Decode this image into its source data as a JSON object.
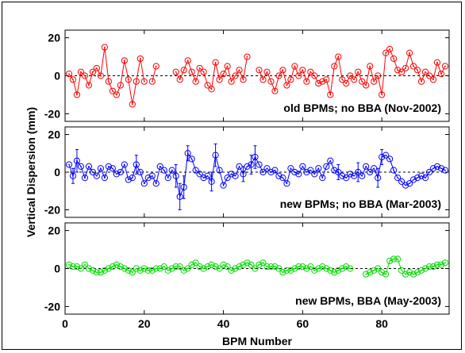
{
  "chart_data": {
    "type": "line",
    "xlabel": "BPM Number",
    "ylabel": "Vertical Dispersion (mm)",
    "xlim": [
      0,
      97
    ],
    "xticks": [
      0,
      20,
      40,
      60,
      80
    ],
    "panels": [
      {
        "annotation": "old BPMs; no BBA (Nov-2002)",
        "color": "#ff0000",
        "marker": "circle-dot",
        "error_bars": false,
        "ylim": [
          -24,
          24
        ],
        "yticks": [
          -20,
          0,
          20
        ],
        "segments": [
          {
            "x": [
              1,
              2,
              3,
              4,
              5,
              6,
              7,
              8,
              9,
              10,
              11,
              12,
              13,
              14,
              15,
              16,
              17,
              18,
              19,
              20
            ],
            "y": [
              1,
              -2,
              -10,
              2,
              0,
              -5,
              2,
              4,
              0,
              15,
              -3,
              -8,
              -10,
              -5,
              8,
              -2,
              -15,
              -3,
              9,
              -3
            ]
          },
          {
            "x": [
              22,
              23
            ],
            "y": [
              -3,
              5
            ]
          },
          {
            "x": [
              28,
              29,
              30,
              31,
              32,
              33,
              34,
              35,
              36,
              37,
              38,
              39,
              40,
              41,
              42,
              43,
              44,
              45,
              46
            ],
            "y": [
              2,
              -2,
              3,
              8,
              2,
              -3,
              4,
              2,
              -5,
              -7,
              7,
              -2,
              1,
              5,
              -3,
              0,
              3,
              -2,
              10
            ]
          },
          {
            "x": [
              49,
              50,
              51,
              52,
              53,
              54,
              55,
              56,
              57,
              58,
              59,
              60,
              61,
              62,
              63,
              64,
              65,
              66,
              67,
              68,
              69,
              70,
              71,
              72,
              73,
              74,
              75,
              76,
              77,
              78,
              79,
              80,
              81,
              82,
              83,
              84,
              85,
              86,
              87,
              88,
              89,
              90,
              91,
              92,
              93,
              94,
              95,
              96
            ],
            "y": [
              3,
              -2,
              2,
              -3,
              -8,
              0,
              3,
              -5,
              -2,
              5,
              0,
              3,
              -3,
              2,
              0,
              -4,
              -3,
              -2,
              -10,
              5,
              10,
              -2,
              -4,
              0,
              -2,
              2,
              -3,
              -5,
              5,
              -3,
              0,
              -10,
              12,
              14,
              9,
              3,
              2,
              4,
              12,
              5,
              3,
              -3,
              2,
              0,
              -2,
              7,
              1,
              5
            ]
          }
        ]
      },
      {
        "annotation": "new BPMs; no BBA (Mar-2003)",
        "color": "#0000ff",
        "marker": "circle-dot",
        "error_bars": true,
        "ylim": [
          -24,
          24
        ],
        "yticks": [
          -20,
          0,
          20
        ],
        "segments": [
          {
            "x": [
              1,
              2,
              3,
              4,
              5,
              6,
              7,
              8,
              9,
              10,
              11,
              12,
              13,
              14,
              15,
              16,
              17,
              18,
              19,
              20,
              21,
              22,
              23,
              24,
              25,
              26,
              27,
              28,
              29,
              30,
              31,
              32,
              33,
              34,
              35,
              36,
              37,
              38,
              39,
              40,
              41,
              42,
              43,
              44,
              45,
              46,
              47,
              48,
              49,
              50,
              51,
              52,
              53,
              54,
              55,
              56,
              57,
              58,
              59,
              60,
              61,
              62,
              63,
              64,
              65,
              66,
              67,
              68,
              69,
              70,
              71,
              72,
              73,
              74,
              75,
              76,
              77,
              78,
              79,
              80,
              81,
              82,
              83,
              84,
              85,
              86,
              87,
              88,
              89,
              90,
              91,
              92,
              93,
              94,
              95,
              96
            ],
            "y": [
              4,
              -2,
              6,
              3,
              -3,
              3,
              0,
              -2,
              2,
              -3,
              3,
              2,
              -1,
              0,
              4,
              -4,
              -3,
              4,
              0,
              -6,
              -3,
              -2,
              -6,
              3,
              1,
              -3,
              1,
              -2,
              -13,
              -8,
              10,
              7,
              1,
              -1,
              -3,
              -2,
              -5,
              9,
              1,
              -7,
              -3,
              -1,
              -2,
              3,
              -1,
              3,
              4,
              8,
              4,
              0,
              2,
              0,
              1,
              -2,
              -3,
              -6,
              2,
              0,
              -1,
              3,
              0,
              1,
              -1,
              2,
              -3,
              3,
              6,
              1,
              0,
              -2,
              -3,
              -1,
              -2,
              0,
              -2,
              3,
              0,
              2,
              -3,
              8,
              9,
              7,
              1,
              -3,
              -5,
              -7,
              -6,
              -4,
              -3,
              -2,
              -3,
              0,
              2,
              3,
              2,
              1
            ]
          }
        ],
        "errors": {
          "x": [
            2,
            3,
            18,
            28,
            29,
            30,
            31,
            37,
            38,
            45,
            47,
            48,
            69,
            74,
            79,
            80
          ],
          "err": [
            4,
            6,
            5,
            6,
            7,
            6,
            4,
            5,
            6,
            4,
            5,
            6,
            4,
            5,
            5,
            4
          ]
        }
      },
      {
        "annotation": "new BPMs, BBA (May-2003)",
        "color": "#00dd00",
        "marker": "circle-dot",
        "error_bars": false,
        "ylim": [
          -24,
          24
        ],
        "yticks": [
          -20,
          0,
          20
        ],
        "segments": [
          {
            "x": [
              1,
              2,
              3,
              4,
              5,
              6,
              7,
              8,
              9,
              10,
              11,
              12,
              13,
              14,
              15,
              16,
              17,
              18,
              19,
              20,
              21,
              22,
              23,
              24,
              25,
              26,
              27,
              28,
              29,
              30,
              31,
              32,
              33,
              34,
              35,
              36,
              37,
              38,
              39,
              40,
              41,
              42,
              43,
              44,
              45,
              46,
              47,
              48,
              49,
              50,
              51,
              52,
              53,
              54,
              55,
              56,
              57,
              58,
              59,
              60,
              61,
              62,
              63,
              64,
              65,
              66,
              67,
              68,
              69,
              70,
              71,
              72
            ],
            "y": [
              2,
              1,
              1,
              0,
              2,
              0,
              -1,
              -2,
              -2,
              -1,
              0,
              1,
              2,
              1,
              0,
              -1,
              -2,
              0,
              -1,
              0,
              -1,
              -1,
              0,
              0,
              1,
              -1,
              0,
              1,
              1,
              -1,
              0,
              2,
              3,
              1,
              0,
              1,
              2,
              1,
              0,
              2,
              1,
              -1,
              0,
              1,
              2,
              3,
              2,
              0,
              2,
              3,
              1,
              1,
              1,
              0,
              -2,
              -1,
              -1,
              0,
              1,
              1,
              0,
              1,
              -1,
              0,
              1,
              0,
              -1,
              -2,
              -1,
              0,
              1,
              0
            ]
          },
          {
            "x": [
              76,
              77,
              78,
              79,
              80,
              81,
              82,
              83,
              84,
              85,
              86,
              87,
              88,
              89,
              90,
              91,
              92,
              93,
              94,
              95,
              96
            ],
            "y": [
              -3,
              -2,
              -1,
              0,
              -2,
              -3,
              4,
              5,
              5,
              -1,
              -3,
              -2,
              -3,
              -2,
              -1,
              0,
              1,
              1,
              2,
              2,
              3
            ]
          }
        ]
      }
    ]
  }
}
